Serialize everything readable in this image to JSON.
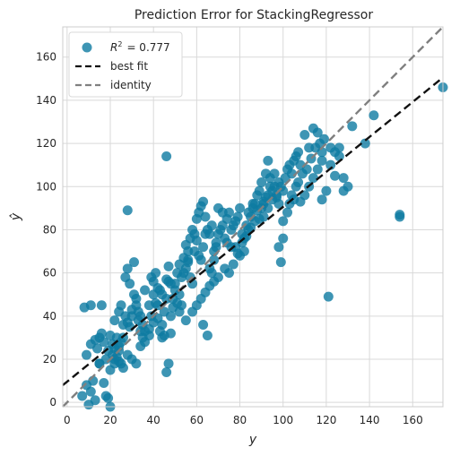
{
  "chart_data": {
    "type": "scatter",
    "title": "Prediction Error for StackingRegressor",
    "xlabel": "y",
    "ylabel": "ŷ",
    "xlim": [
      -2,
      174
    ],
    "ylim": [
      -2,
      174
    ],
    "xticks": [
      0,
      20,
      40,
      60,
      80,
      100,
      120,
      140,
      160
    ],
    "yticks": [
      0,
      20,
      40,
      60,
      80,
      100,
      120,
      140,
      160
    ],
    "grid": true,
    "legend_placement": "top-left",
    "legend": [
      {
        "label_prefix": "R",
        "label_sup": "2",
        "label_value": "= 0.777",
        "kind": "marker"
      },
      {
        "label": "best fit",
        "kind": "dashed-line"
      },
      {
        "label": "identity",
        "kind": "dashed-line"
      }
    ],
    "colors": {
      "points": "#0e7aa1",
      "best_fit": "#111111",
      "identity": "#808080",
      "grid": "#d9d9d9",
      "frame": "#cccccc"
    },
    "best_fit_line": {
      "slope": 0.81,
      "intercept": 9.6
    },
    "identity_line": {
      "slope": 1,
      "intercept": 0
    },
    "points": [
      [
        7,
        3
      ],
      [
        9,
        8
      ],
      [
        10,
        -1
      ],
      [
        11,
        5
      ],
      [
        12,
        10
      ],
      [
        13,
        1
      ],
      [
        15,
        18
      ],
      [
        16,
        45
      ],
      [
        17,
        9
      ],
      [
        18,
        3
      ],
      [
        19,
        2
      ],
      [
        20,
        -2
      ],
      [
        20,
        15
      ],
      [
        21,
        22
      ],
      [
        22,
        20
      ],
      [
        23,
        30
      ],
      [
        24,
        26
      ],
      [
        25,
        18
      ],
      [
        26,
        16
      ],
      [
        22,
        38
      ],
      [
        24,
        42
      ],
      [
        25,
        45
      ],
      [
        26,
        36
      ],
      [
        27,
        40
      ],
      [
        28,
        37
      ],
      [
        29,
        35
      ],
      [
        30,
        40
      ],
      [
        30,
        43
      ],
      [
        31,
        50
      ],
      [
        32,
        45
      ],
      [
        33,
        38
      ],
      [
        34,
        40
      ],
      [
        27,
        58
      ],
      [
        28,
        62
      ],
      [
        29,
        55
      ],
      [
        31,
        65
      ],
      [
        28,
        89
      ],
      [
        24,
        24
      ],
      [
        25,
        28
      ],
      [
        26,
        30
      ],
      [
        28,
        22
      ],
      [
        30,
        20
      ],
      [
        32,
        18
      ],
      [
        34,
        26
      ],
      [
        35,
        30
      ],
      [
        36,
        33
      ],
      [
        20,
        31
      ],
      [
        21,
        27
      ],
      [
        22,
        25
      ],
      [
        23,
        21
      ],
      [
        24,
        19
      ],
      [
        19,
        24
      ],
      [
        18,
        20
      ],
      [
        17,
        28
      ],
      [
        16,
        32
      ],
      [
        15,
        18
      ],
      [
        14,
        25
      ],
      [
        13,
        29
      ],
      [
        11,
        27
      ],
      [
        9,
        22
      ],
      [
        8,
        44
      ],
      [
        11,
        45
      ],
      [
        15,
        30
      ],
      [
        22,
        18
      ],
      [
        38,
        34
      ],
      [
        39,
        40
      ],
      [
        40,
        50
      ],
      [
        40,
        56
      ],
      [
        41,
        46
      ],
      [
        42,
        45
      ],
      [
        43,
        52
      ],
      [
        44,
        36
      ],
      [
        45,
        42
      ],
      [
        46,
        48
      ],
      [
        47,
        56
      ],
      [
        48,
        40
      ],
      [
        49,
        44
      ],
      [
        50,
        55
      ],
      [
        51,
        60
      ],
      [
        52,
        50
      ],
      [
        53,
        45
      ],
      [
        54,
        60
      ],
      [
        55,
        62
      ],
      [
        56,
        65
      ],
      [
        57,
        58
      ],
      [
        58,
        55
      ],
      [
        59,
        70
      ],
      [
        60,
        75
      ],
      [
        61,
        68
      ],
      [
        62,
        66
      ],
      [
        63,
        72
      ],
      [
        64,
        78
      ],
      [
        65,
        80
      ],
      [
        66,
        62
      ],
      [
        67,
        60
      ],
      [
        68,
        70
      ],
      [
        69,
        74
      ],
      [
        70,
        78
      ],
      [
        71,
        80
      ],
      [
        72,
        82
      ],
      [
        73,
        76
      ],
      [
        74,
        85
      ],
      [
        75,
        88
      ],
      [
        76,
        72
      ],
      [
        77,
        82
      ],
      [
        78,
        84
      ],
      [
        79,
        86
      ],
      [
        80,
        90
      ],
      [
        81,
        78
      ],
      [
        82,
        76
      ],
      [
        83,
        82
      ],
      [
        84,
        88
      ],
      [
        85,
        86
      ],
      [
        86,
        90
      ],
      [
        87,
        92
      ],
      [
        88,
        89
      ],
      [
        89,
        85
      ],
      [
        90,
        90
      ],
      [
        91,
        92
      ],
      [
        92,
        95
      ],
      [
        93,
        96
      ],
      [
        94,
        100
      ],
      [
        95,
        98
      ],
      [
        96,
        100
      ],
      [
        97,
        95
      ],
      [
        98,
        102
      ],
      [
        99,
        100
      ],
      [
        100,
        98
      ],
      [
        101,
        104
      ],
      [
        102,
        108
      ],
      [
        103,
        110
      ],
      [
        104,
        106
      ],
      [
        105,
        112
      ],
      [
        106,
        114
      ],
      [
        107,
        116
      ],
      [
        108,
        110
      ],
      [
        110,
        124
      ],
      [
        112,
        118
      ],
      [
        114,
        127
      ],
      [
        116,
        125
      ],
      [
        118,
        116
      ],
      [
        120,
        98
      ],
      [
        122,
        110
      ],
      [
        124,
        105
      ],
      [
        126,
        118
      ],
      [
        128,
        104
      ],
      [
        130,
        100
      ],
      [
        132,
        128
      ],
      [
        138,
        120
      ],
      [
        142,
        133
      ],
      [
        154,
        87
      ],
      [
        154,
        86
      ],
      [
        174,
        146
      ],
      [
        121,
        49
      ],
      [
        93,
        112
      ],
      [
        91,
        93
      ],
      [
        98,
        72
      ],
      [
        99,
        65
      ],
      [
        100,
        84
      ],
      [
        102,
        88
      ],
      [
        46,
        114
      ],
      [
        47,
        18
      ],
      [
        46,
        14
      ],
      [
        45,
        31
      ],
      [
        48,
        32
      ],
      [
        65,
        31
      ],
      [
        63,
        36
      ],
      [
        55,
        38
      ],
      [
        58,
        42
      ],
      [
        60,
        45
      ],
      [
        62,
        48
      ],
      [
        64,
        51
      ],
      [
        66,
        54
      ],
      [
        68,
        56
      ],
      [
        70,
        58
      ],
      [
        52,
        42
      ],
      [
        51,
        46
      ],
      [
        50,
        52
      ],
      [
        49,
        48
      ],
      [
        48,
        55
      ],
      [
        56,
        70
      ],
      [
        57,
        76
      ],
      [
        58,
        80
      ],
      [
        59,
        78
      ],
      [
        60,
        85
      ],
      [
        61,
        88
      ],
      [
        62,
        91
      ],
      [
        63,
        93
      ],
      [
        64,
        86
      ],
      [
        66,
        78
      ],
      [
        67,
        82
      ],
      [
        68,
        66
      ],
      [
        69,
        72
      ],
      [
        70,
        90
      ],
      [
        72,
        88
      ],
      [
        74,
        74
      ],
      [
        76,
        80
      ],
      [
        78,
        72
      ],
      [
        80,
        68
      ],
      [
        82,
        70
      ],
      [
        84,
        80
      ],
      [
        86,
        92
      ],
      [
        88,
        96
      ],
      [
        89,
        98
      ],
      [
        90,
        102
      ],
      [
        92,
        106
      ],
      [
        94,
        104
      ],
      [
        96,
        106
      ],
      [
        98,
        92
      ],
      [
        100,
        76
      ],
      [
        104,
        96
      ],
      [
        106,
        100
      ],
      [
        108,
        93
      ],
      [
        110,
        96
      ],
      [
        112,
        100
      ],
      [
        114,
        104
      ],
      [
        116,
        108
      ],
      [
        118,
        112
      ],
      [
        122,
        118
      ],
      [
        124,
        116
      ],
      [
        126,
        114
      ],
      [
        128,
        98
      ],
      [
        118,
        94
      ],
      [
        36,
        28
      ],
      [
        38,
        31
      ],
      [
        40,
        37
      ],
      [
        42,
        39
      ],
      [
        43,
        33
      ],
      [
        44,
        30
      ],
      [
        35,
        36
      ],
      [
        34,
        33
      ],
      [
        33,
        42
      ],
      [
        32,
        48
      ],
      [
        36,
        52
      ],
      [
        38,
        45
      ],
      [
        39,
        58
      ],
      [
        41,
        60
      ],
      [
        42,
        53
      ],
      [
        44,
        50
      ],
      [
        46,
        57
      ],
      [
        47,
        63
      ],
      [
        52,
        64
      ],
      [
        54,
        67
      ],
      [
        55,
        73
      ],
      [
        56,
        66
      ],
      [
        53,
        58
      ],
      [
        73,
        62
      ],
      [
        75,
        60
      ],
      [
        77,
        64
      ],
      [
        79,
        69
      ],
      [
        81,
        74
      ],
      [
        83,
        77
      ],
      [
        85,
        81
      ],
      [
        87,
        84
      ],
      [
        91,
        86
      ],
      [
        93,
        90
      ],
      [
        95,
        94
      ],
      [
        97,
        96
      ],
      [
        103,
        92
      ],
      [
        105,
        94
      ],
      [
        107,
        102
      ],
      [
        109,
        106
      ],
      [
        111,
        108
      ],
      [
        113,
        113
      ],
      [
        115,
        118
      ],
      [
        117,
        120
      ],
      [
        119,
        122
      ]
    ]
  }
}
